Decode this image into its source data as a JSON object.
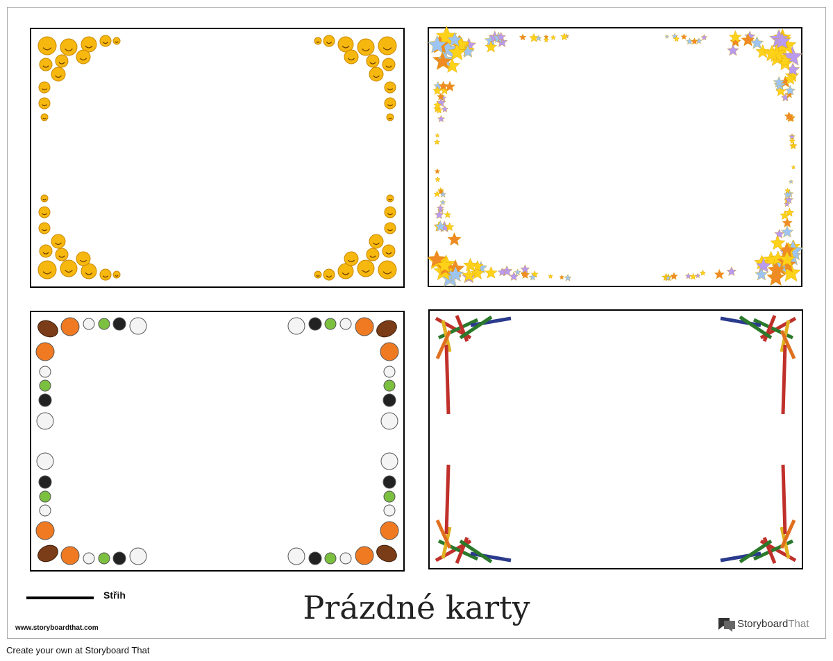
{
  "legend": {
    "cut_label": "Střih"
  },
  "title": "Prázdné karty",
  "footer": {
    "url": "www.storyboardthat.com",
    "logo": {
      "brand": "Storyboard",
      "suffix": "That"
    }
  },
  "caption": "Create your own at Storyboard That"
}
